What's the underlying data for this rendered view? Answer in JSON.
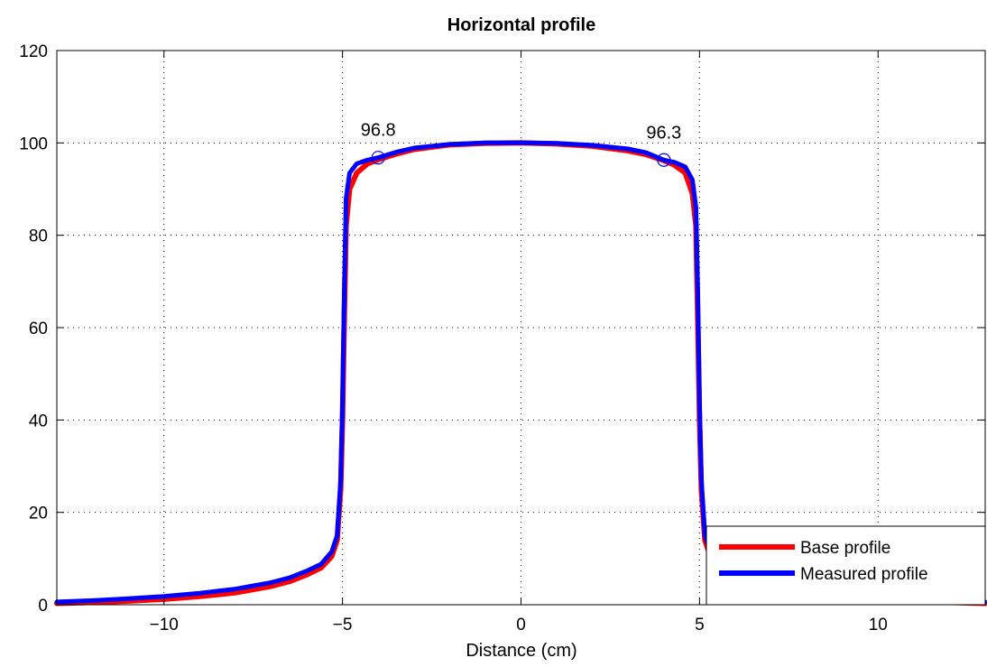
{
  "chart_data": {
    "type": "line",
    "title": "Horizontal profile",
    "xlabel": "Distance (cm)",
    "ylabel": "",
    "xlim": [
      -13,
      13
    ],
    "ylim": [
      0,
      120
    ],
    "xticks": [
      -10,
      -5,
      0,
      5,
      10
    ],
    "xtick_labels": [
      "−10",
      "−5",
      "0",
      "5",
      "10"
    ],
    "yticks": [
      0,
      20,
      40,
      60,
      80,
      100,
      120
    ],
    "ytick_labels": [
      "0",
      "20",
      "40",
      "60",
      "80",
      "100",
      "120"
    ],
    "grid": true,
    "legend_position": "bottom-right",
    "series": [
      {
        "name": "Base profile",
        "color": "#ff0000",
        "x": [
          -13,
          -12,
          -11,
          -10,
          -9,
          -8,
          -7,
          -6.5,
          -6,
          -5.6,
          -5.3,
          -5.15,
          -5.05,
          -5.0,
          -4.95,
          -4.9,
          -4.8,
          -4.6,
          -4.3,
          -4.0,
          -3.5,
          -3.0,
          -2.0,
          -1.0,
          0,
          1.0,
          2.0,
          3.0,
          3.5,
          4.0,
          4.3,
          4.6,
          4.8,
          4.9,
          4.95,
          5.0,
          5.05,
          5.15,
          5.3,
          5.6,
          6.0,
          6.5,
          7,
          8,
          9,
          10,
          11,
          12,
          13
        ],
        "y": [
          0.3,
          0.5,
          0.8,
          1.2,
          1.8,
          2.6,
          4.0,
          5.0,
          6.5,
          8.0,
          10.5,
          14,
          25,
          40,
          62,
          82,
          90,
          93.5,
          95.5,
          96.4,
          97.6,
          98.6,
          99.6,
          99.9,
          100,
          99.8,
          99.3,
          98.3,
          97.5,
          96.2,
          95.2,
          93.5,
          89,
          82,
          62,
          40,
          25,
          14,
          10.5,
          8.0,
          6.5,
          5.0,
          4.0,
          2.6,
          1.8,
          1.2,
          0.8,
          0.5,
          0.3
        ]
      },
      {
        "name": "Measured profile",
        "color": "#0000ff",
        "x": [
          -13,
          -12,
          -11,
          -10,
          -9,
          -8,
          -7,
          -6.5,
          -6,
          -5.6,
          -5.3,
          -5.15,
          -5.05,
          -5.0,
          -4.95,
          -4.9,
          -4.8,
          -4.6,
          -4.3,
          -4.0,
          -3.5,
          -3.0,
          -2.0,
          -1.0,
          0,
          1.0,
          2.0,
          3.0,
          3.5,
          4.0,
          4.3,
          4.6,
          4.8,
          4.9,
          4.95,
          5.0,
          5.05,
          5.15,
          5.3,
          5.6,
          6.0,
          6.5,
          7,
          8,
          9,
          10,
          11,
          12,
          13
        ],
        "y": [
          0.6,
          0.9,
          1.3,
          1.8,
          2.5,
          3.4,
          4.8,
          5.8,
          7.3,
          8.8,
          11.5,
          15,
          27,
          43,
          68,
          88,
          93.5,
          95.5,
          96.3,
          96.8,
          98.0,
          98.9,
          99.7,
          100,
          100,
          99.9,
          99.5,
          98.7,
          97.9,
          96.3,
          95.8,
          94.8,
          92,
          86,
          68,
          43,
          27,
          15,
          11.5,
          8.8,
          7.3,
          5.8,
          4.8,
          3.4,
          2.5,
          1.8,
          1.3,
          0.9,
          0.6
        ]
      }
    ],
    "annotations": [
      {
        "text": "96.8",
        "x": -4.0,
        "y": 96.8,
        "color": "#0000ff"
      },
      {
        "text": "96.3",
        "x": 4.0,
        "y": 96.3,
        "color": "#0000ff"
      }
    ]
  }
}
